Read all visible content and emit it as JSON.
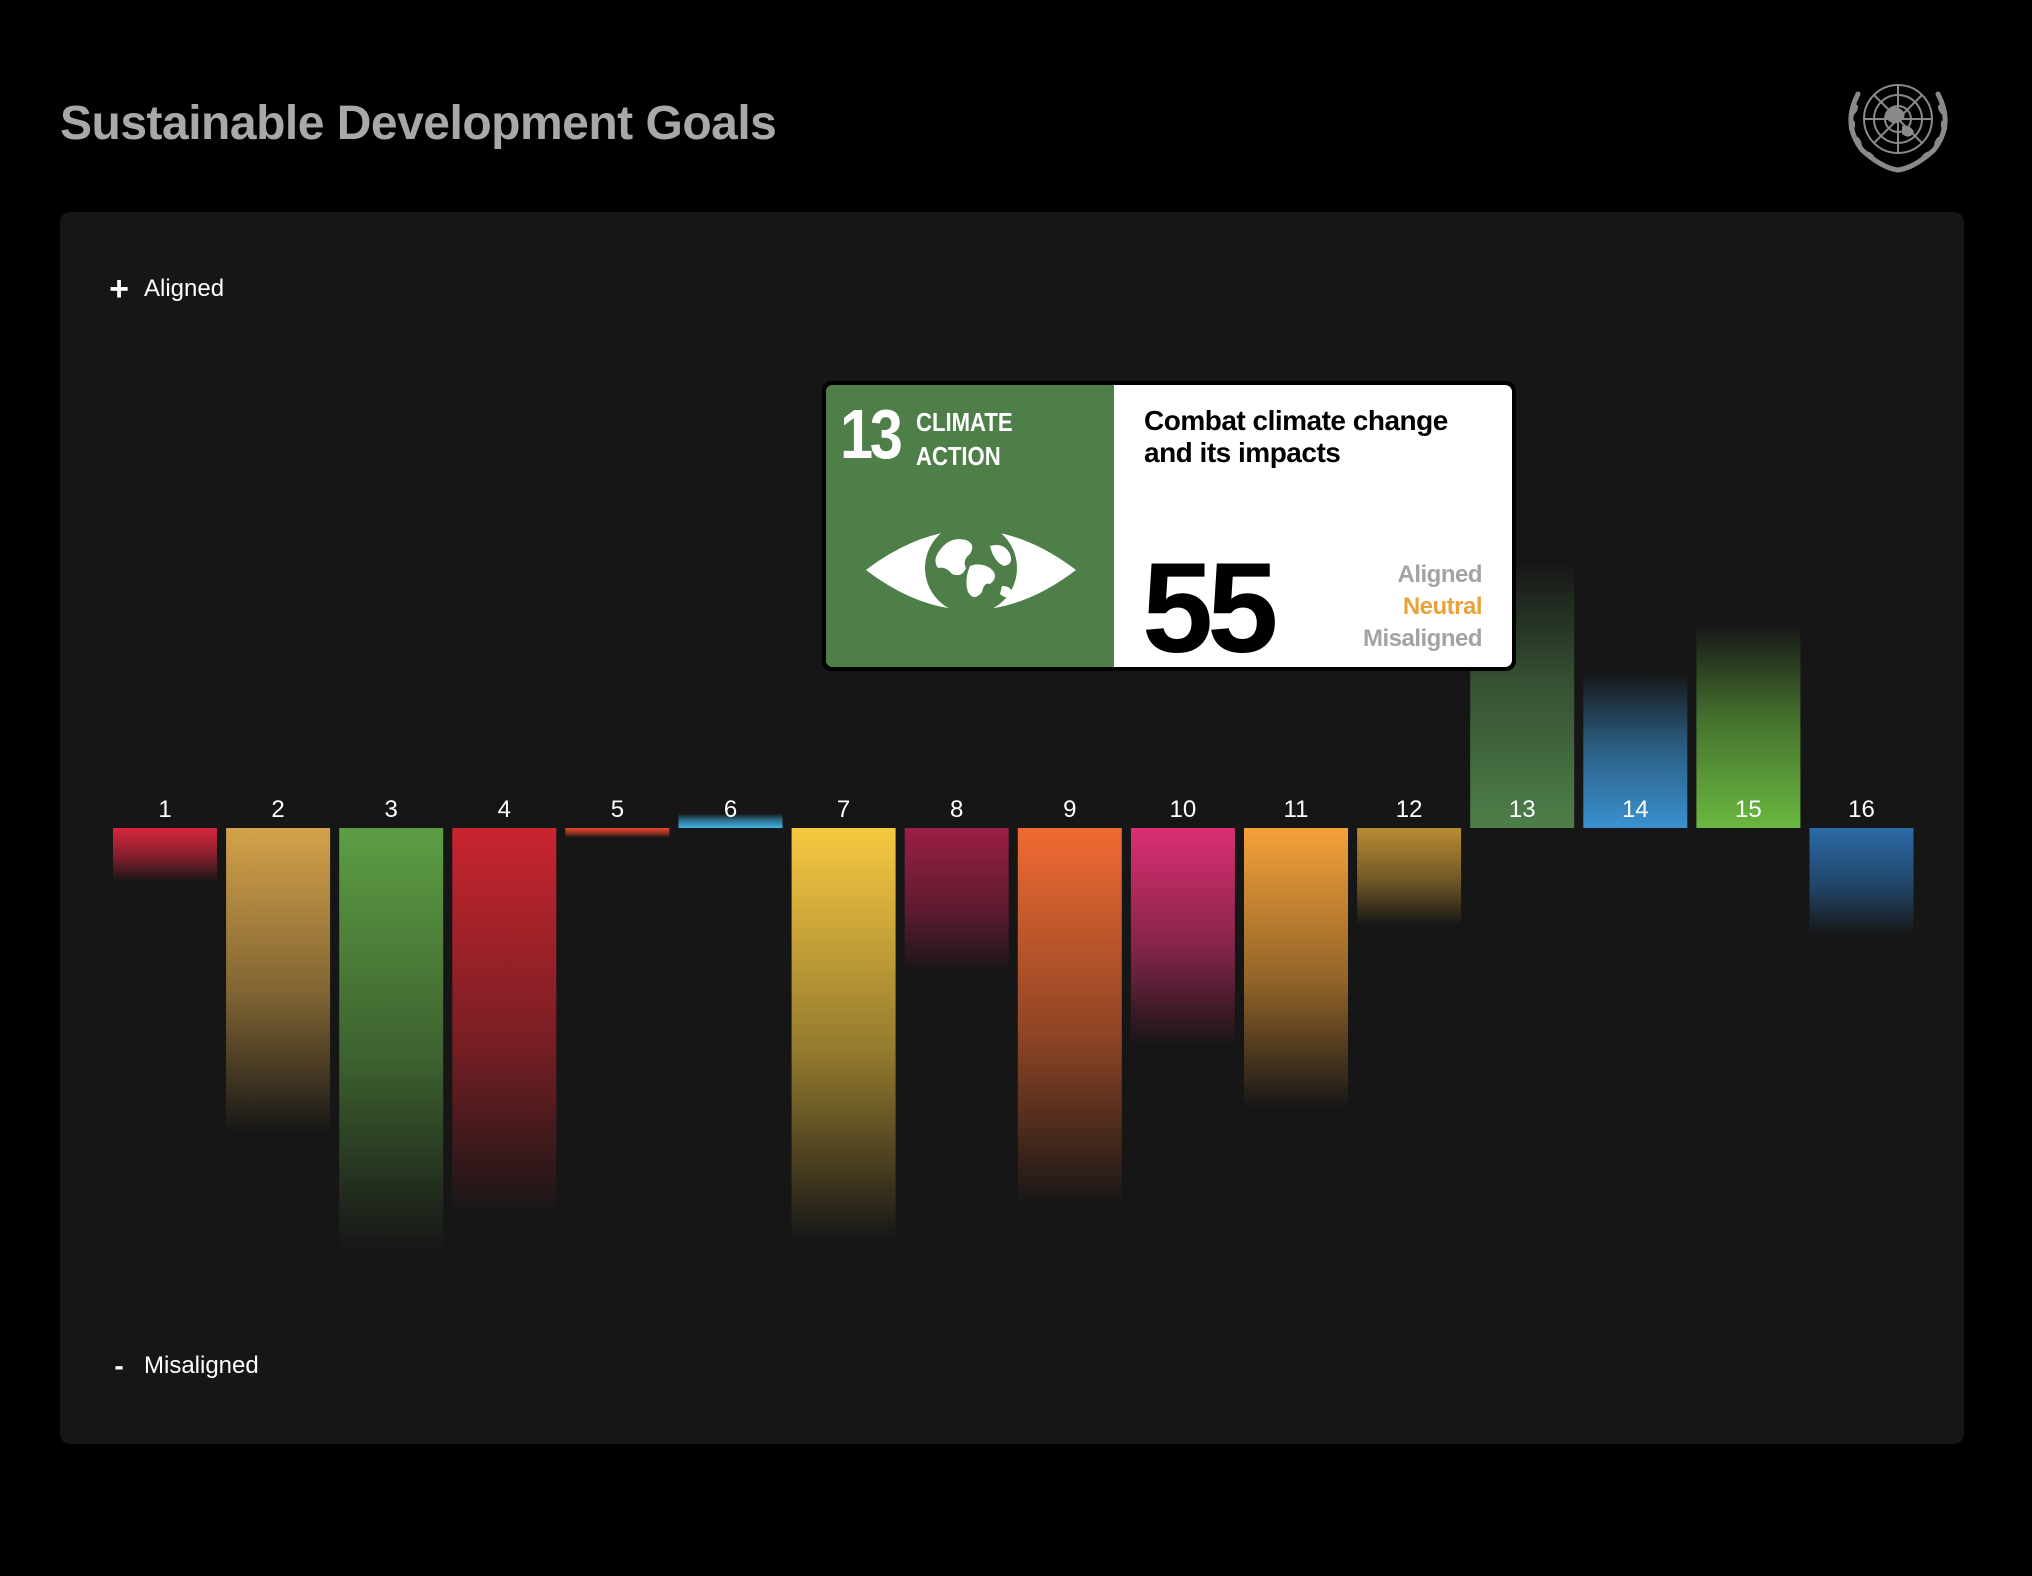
{
  "header": {
    "title": "Sustainable Development Goals"
  },
  "legend": {
    "aligned_symbol": "+",
    "aligned_label": "Aligned",
    "misaligned_symbol": "-",
    "misaligned_label": "Misaligned"
  },
  "tooltip": {
    "goal_number": "13",
    "goal_name_line1": "CLIMATE",
    "goal_name_line2": "ACTION",
    "goal_color": "#4f7f49",
    "icon": "eye-globe-icon",
    "description": "Combat climate change and its impacts",
    "count": "55",
    "status_aligned": "Aligned",
    "status_neutral": "Neutral",
    "status_misaligned": "Misaligned",
    "highlight_color": "#e8a33a"
  },
  "chart_data": {
    "type": "bar",
    "title": "Sustainable Development Goals",
    "ylabel_positive": "Aligned",
    "ylabel_negative": "Misaligned",
    "ylim": [
      -90,
      60
    ],
    "categories": [
      "1",
      "2",
      "3",
      "4",
      "5",
      "6",
      "7",
      "8",
      "9",
      "10",
      "11",
      "12",
      "13",
      "14",
      "15",
      "16"
    ],
    "values": [
      -11,
      -63,
      -87,
      -80,
      -2,
      3,
      -85,
      -30,
      -78,
      -45,
      -58,
      -20,
      55,
      32,
      42,
      -22
    ],
    "colors": [
      "#d7263d",
      "#d4a24a",
      "#5d9e44",
      "#c9252f",
      "#e8472a",
      "#42b4e6",
      "#f7c941",
      "#9b1f44",
      "#f06a32",
      "#dc2f72",
      "#f5a139",
      "#b88b33",
      "#4f7f49",
      "#3a91d1",
      "#6ab840",
      "#2b6aa8"
    ],
    "highlighted_category": "13"
  }
}
